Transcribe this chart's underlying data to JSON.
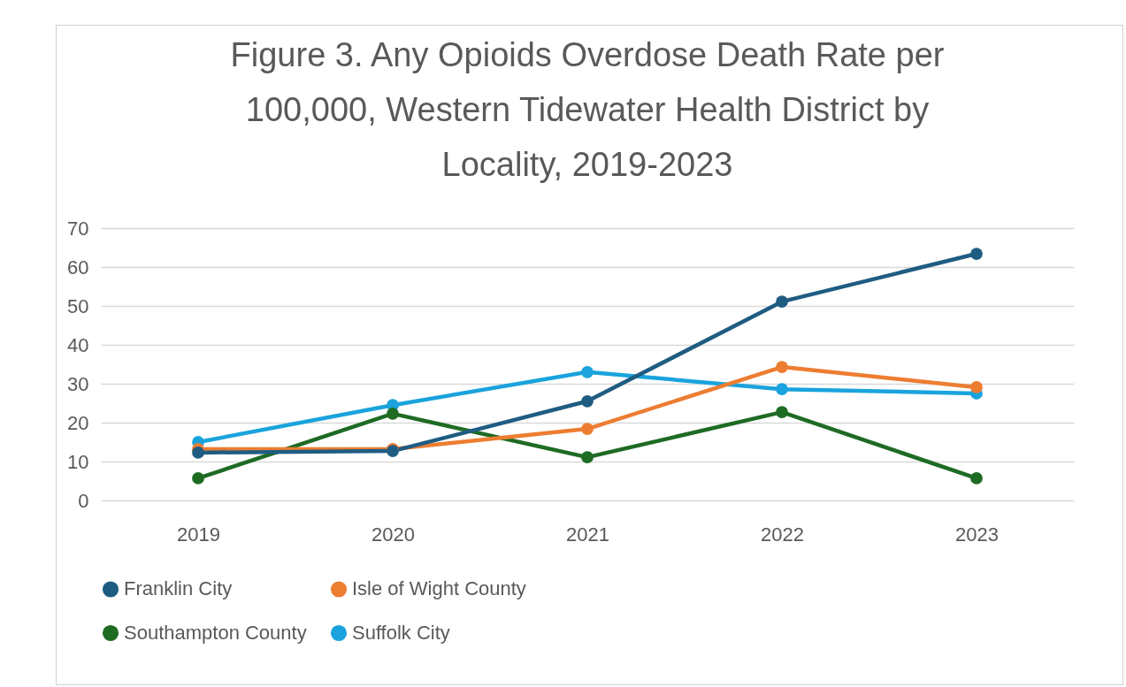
{
  "chart_data": {
    "type": "line",
    "title": "Figure 3. Any Opioids Overdose Death Rate per 100,000, Western Tidewater Health District by Locality, 2019-2023",
    "categories": [
      "2019",
      "2020",
      "2021",
      "2022",
      "2023"
    ],
    "series": [
      {
        "name": "Franklin City",
        "color": "#1f5c82",
        "values": [
          12.3,
          12.7,
          25.5,
          51.1,
          63.4
        ]
      },
      {
        "name": "Isle of Wight County",
        "color": "#ed7d31",
        "values": [
          13.2,
          13.2,
          18.4,
          34.3,
          29.1
        ]
      },
      {
        "name": "Southampton County",
        "color": "#1e6b24",
        "values": [
          5.7,
          22.3,
          11.1,
          22.7,
          5.7
        ]
      },
      {
        "name": "Suffolk City",
        "color": "#1aa3dd",
        "values": [
          15,
          24.5,
          33,
          28.6,
          27.5
        ]
      }
    ],
    "ylim": [
      0,
      70
    ],
    "yticks": [
      0,
      10,
      20,
      30,
      40,
      50,
      60,
      70
    ],
    "grid": "y",
    "legend": "bottom",
    "marker": "circle",
    "line_style": "solid"
  }
}
